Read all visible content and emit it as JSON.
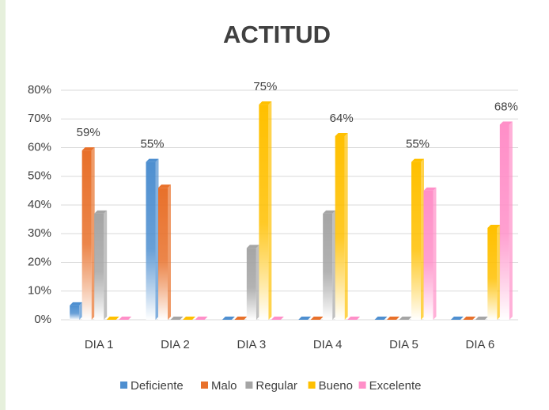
{
  "chart_data": {
    "type": "bar",
    "title": "ACTITUD",
    "categories": [
      "DIA 1",
      "DIA 2",
      "DIA 3",
      "DIA 4",
      "DIA 5",
      "DIA 6"
    ],
    "series": [
      {
        "name": "Deficiente",
        "color": "#4e8fd0",
        "values": [
          5,
          55,
          0,
          0,
          0,
          0
        ],
        "value_labels": [
          null,
          "55%",
          null,
          null,
          null,
          null
        ]
      },
      {
        "name": "Malo",
        "color": "#e8702a",
        "values": [
          59,
          46,
          0,
          0,
          0,
          0
        ],
        "value_labels": [
          "59%",
          null,
          null,
          null,
          null,
          null
        ]
      },
      {
        "name": "Regular",
        "color": "#a5a5a5",
        "values": [
          37,
          0,
          25,
          37,
          0,
          0
        ]
      },
      {
        "name": "Bueno",
        "color": "#ffc000",
        "values": [
          0,
          0,
          75,
          64,
          55,
          32
        ],
        "value_labels": [
          null,
          null,
          "75%",
          "64%",
          "55%",
          null
        ]
      },
      {
        "name": "Excelente",
        "color": "#ff8fc8",
        "values": [
          0,
          0,
          0,
          0,
          45,
          68
        ],
        "value_labels": [
          null,
          null,
          null,
          null,
          null,
          "68%"
        ]
      }
    ],
    "ylim": [
      0,
      80
    ],
    "yticks": [
      {
        "value": 0,
        "label": "0%"
      },
      {
        "value": 10,
        "label": "10%"
      },
      {
        "value": 20,
        "label": "20%"
      },
      {
        "value": 30,
        "label": "30%"
      },
      {
        "value": 40,
        "label": "40%"
      },
      {
        "value": 50,
        "label": "50%"
      },
      {
        "value": 60,
        "label": "60%"
      },
      {
        "value": 70,
        "label": "70%"
      },
      {
        "value": 80,
        "label": "80%"
      }
    ],
    "grid": true,
    "legend": "bottom"
  }
}
